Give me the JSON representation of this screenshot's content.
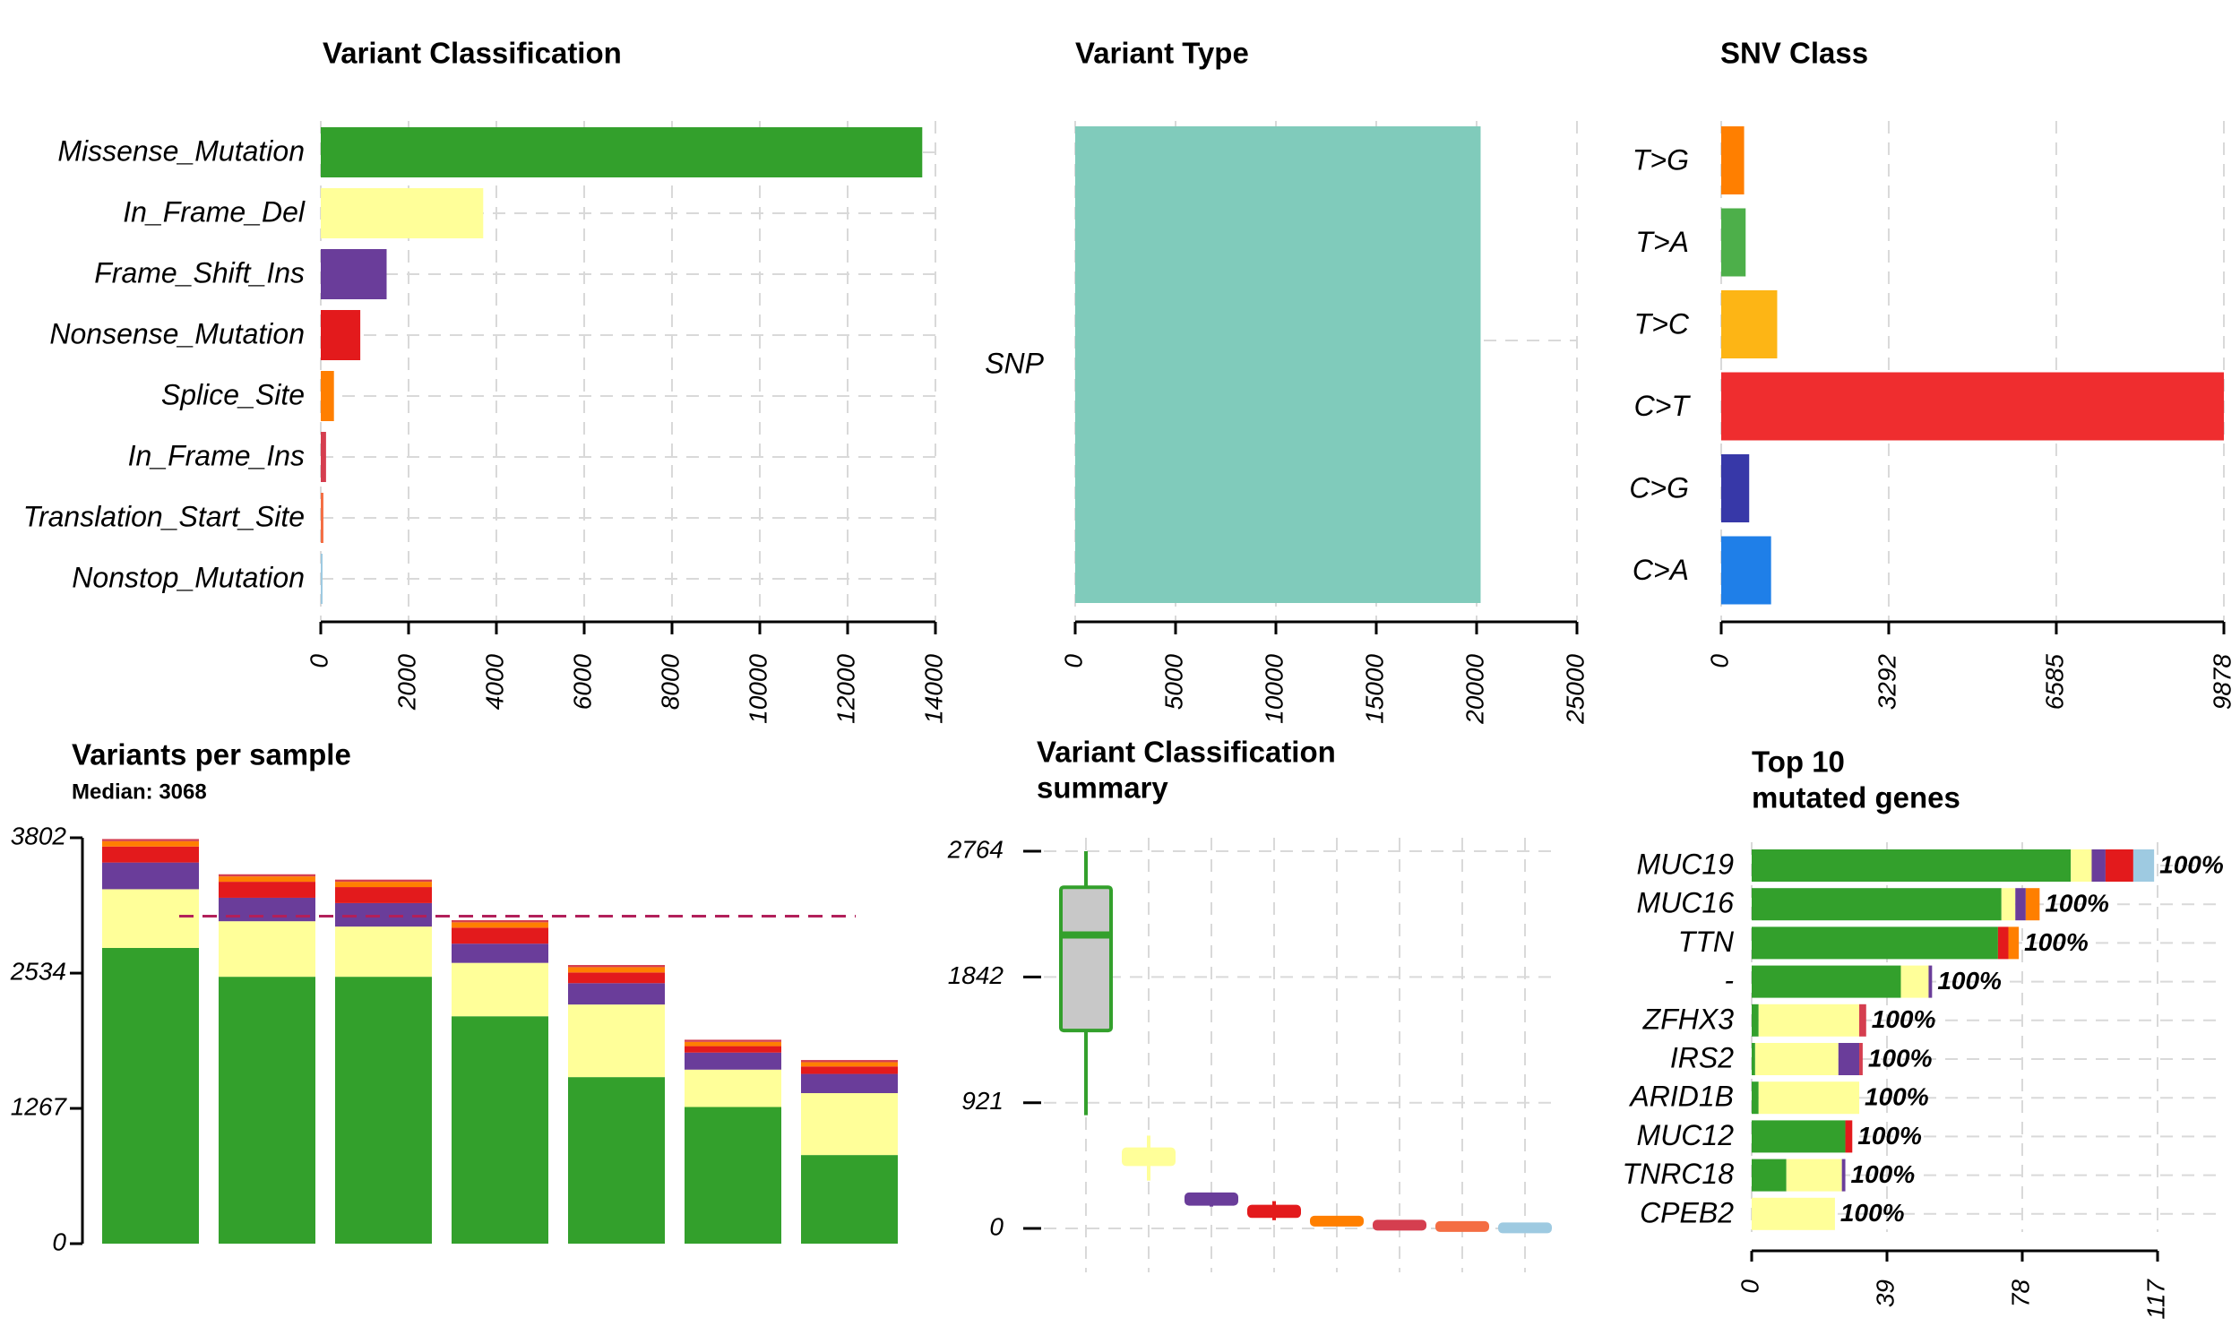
{
  "colors": {
    "Missense_Mutation": "#33a02c",
    "In_Frame_Del": "#ffff99",
    "Frame_Shift_Ins": "#6a3d9a",
    "Nonsense_Mutation": "#e31a1c",
    "Splice_Site": "#ff7f00",
    "In_Frame_Ins": "#d53e4f",
    "Translation_Start_Site": "#f46d43",
    "Nonstop_Mutation": "#9ecae1",
    "SNP": "#80cbbb",
    "median_line": "#b2205a"
  },
  "chart_data": [
    {
      "id": "variant_classification",
      "type": "bar",
      "orientation": "horizontal",
      "title": "Variant Classification",
      "categories": [
        "Missense_Mutation",
        "In_Frame_Del",
        "Frame_Shift_Ins",
        "Nonsense_Mutation",
        "Splice_Site",
        "In_Frame_Ins",
        "Translation_Start_Site",
        "Nonstop_Mutation"
      ],
      "values": [
        13700,
        3700,
        1500,
        900,
        300,
        120,
        60,
        20
      ],
      "xlim": [
        0,
        14000
      ],
      "ticks": [
        "0",
        "2000",
        "4000",
        "6000",
        "8000",
        "10000",
        "12000",
        "14000"
      ],
      "grid": true
    },
    {
      "id": "variant_type",
      "type": "bar",
      "orientation": "horizontal",
      "title": "Variant Type",
      "categories": [
        "SNP"
      ],
      "values": [
        20200
      ],
      "xlim": [
        0,
        25000
      ],
      "ticks": [
        "0",
        "5000",
        "10000",
        "15000",
        "20000",
        "25000"
      ],
      "grid": true
    },
    {
      "id": "snv_class",
      "type": "bar",
      "orientation": "horizontal",
      "title": "SNV Class",
      "categories": [
        "T>G",
        "T>A",
        "T>C",
        "C>T",
        "C>G",
        "C>A"
      ],
      "values": [
        450,
        480,
        1100,
        9878,
        550,
        980
      ],
      "colors": [
        "#ff7f00",
        "#4daf4a",
        "#fdb515",
        "#ef2d2f",
        "#3738a8",
        "#1f7fe8"
      ],
      "xlim": [
        0,
        9878
      ],
      "ticks": [
        "0",
        "3292",
        "6585",
        "9878"
      ],
      "grid": true
    },
    {
      "id": "variants_per_sample",
      "type": "bar",
      "stacked": true,
      "title": "Variants per sample",
      "subtitle": "Median: 3068",
      "median": 3068,
      "ylim": [
        0,
        3802
      ],
      "ticks": [
        "0",
        "1267",
        "2534",
        "3802"
      ],
      "series": [
        {
          "name": "Missense_Mutation",
          "values": [
            2770,
            2500,
            2500,
            2130,
            1560,
            1280,
            830
          ]
        },
        {
          "name": "In_Frame_Del",
          "values": [
            550,
            520,
            470,
            500,
            680,
            350,
            580
          ]
        },
        {
          "name": "Frame_Shift_Ins",
          "values": [
            250,
            220,
            220,
            180,
            200,
            160,
            180
          ]
        },
        {
          "name": "Nonsense_Mutation",
          "values": [
            150,
            150,
            150,
            150,
            100,
            60,
            70
          ]
        },
        {
          "name": "Splice_Site",
          "values": [
            50,
            50,
            50,
            50,
            50,
            40,
            40
          ]
        },
        {
          "name": "In_Frame_Ins",
          "values": [
            20,
            20,
            20,
            20,
            20,
            20,
            20
          ]
        }
      ],
      "grid": false
    },
    {
      "id": "variant_classification_summary",
      "type": "boxplot",
      "title": "Variant Classification summary",
      "title_lines": [
        "Variant Classification",
        "summary"
      ],
      "ylim": [
        0,
        2764
      ],
      "ticks": [
        "0",
        "921",
        "1842",
        "2764"
      ],
      "boxes": [
        {
          "name": "Missense_Mutation",
          "min": 830,
          "q1": 1450,
          "median": 2150,
          "q3": 2500,
          "max": 2764
        },
        {
          "name": "In_Frame_Del",
          "min": 350,
          "q1": 470,
          "median": 520,
          "q3": 580,
          "max": 680
        },
        {
          "name": "Frame_Shift_Ins",
          "min": 160,
          "q1": 180,
          "median": 200,
          "q3": 250,
          "max": 250
        },
        {
          "name": "Nonsense_Mutation",
          "min": 60,
          "q1": 90,
          "median": 130,
          "q3": 160,
          "max": 200
        },
        {
          "name": "Splice_Site",
          "min": 40,
          "q1": 40,
          "median": 50,
          "q3": 80,
          "max": 80
        },
        {
          "name": "In_Frame_Ins",
          "min": 10,
          "q1": 10,
          "median": 20,
          "q3": 50,
          "max": 50
        },
        {
          "name": "Translation_Start_Site",
          "min": 10,
          "q1": 10,
          "median": 20,
          "q3": 40,
          "max": 40
        },
        {
          "name": "Nonstop_Mutation",
          "min": 5,
          "q1": 5,
          "median": 10,
          "q3": 30,
          "max": 30
        }
      ],
      "grid": true
    },
    {
      "id": "top10_mutated_genes",
      "type": "bar",
      "orientation": "horizontal",
      "stacked": true,
      "title": "Top 10 mutated genes",
      "title_lines": [
        "Top 10",
        "mutated genes"
      ],
      "xlim": [
        0,
        117
      ],
      "ticks": [
        "0",
        "39",
        "78",
        "117"
      ],
      "genes": [
        {
          "name": "MUC19",
          "pct": "100%",
          "segments": [
            [
              "Missense_Mutation",
              92
            ],
            [
              "In_Frame_Del",
              6
            ],
            [
              "Frame_Shift_Ins",
              4
            ],
            [
              "Nonsense_Mutation",
              8
            ],
            [
              "Nonstop_Mutation",
              6
            ]
          ]
        },
        {
          "name": "MUC16",
          "pct": "100%",
          "segments": [
            [
              "Missense_Mutation",
              72
            ],
            [
              "In_Frame_Del",
              4
            ],
            [
              "Frame_Shift_Ins",
              3
            ],
            [
              "Splice_Site",
              4
            ]
          ]
        },
        {
          "name": "TTN",
          "pct": "100%",
          "segments": [
            [
              "Missense_Mutation",
              71
            ],
            [
              "Nonsense_Mutation",
              3
            ],
            [
              "Splice_Site",
              3
            ]
          ]
        },
        {
          "name": "-",
          "pct": "100%",
          "segments": [
            [
              "Missense_Mutation",
              43
            ],
            [
              "In_Frame_Del",
              8
            ],
            [
              "Frame_Shift_Ins",
              1
            ]
          ]
        },
        {
          "name": "ZFHX3",
          "pct": "100%",
          "segments": [
            [
              "Missense_Mutation",
              2
            ],
            [
              "In_Frame_Del",
              29
            ],
            [
              "In_Frame_Ins",
              2
            ]
          ]
        },
        {
          "name": "IRS2",
          "pct": "100%",
          "segments": [
            [
              "Missense_Mutation",
              1
            ],
            [
              "In_Frame_Del",
              24
            ],
            [
              "Frame_Shift_Ins",
              6
            ],
            [
              "In_Frame_Ins",
              1
            ]
          ]
        },
        {
          "name": "ARID1B",
          "pct": "100%",
          "segments": [
            [
              "Missense_Mutation",
              2
            ],
            [
              "In_Frame_Del",
              29
            ]
          ]
        },
        {
          "name": "MUC12",
          "pct": "100%",
          "segments": [
            [
              "Missense_Mutation",
              27
            ],
            [
              "Nonsense_Mutation",
              2
            ]
          ]
        },
        {
          "name": "TNRC18",
          "pct": "100%",
          "segments": [
            [
              "Missense_Mutation",
              10
            ],
            [
              "In_Frame_Del",
              16
            ],
            [
              "Frame_Shift_Ins",
              1
            ]
          ]
        },
        {
          "name": "CPEB2",
          "pct": "100%",
          "segments": [
            [
              "In_Frame_Del",
              24
            ]
          ]
        }
      ],
      "grid": true
    }
  ]
}
